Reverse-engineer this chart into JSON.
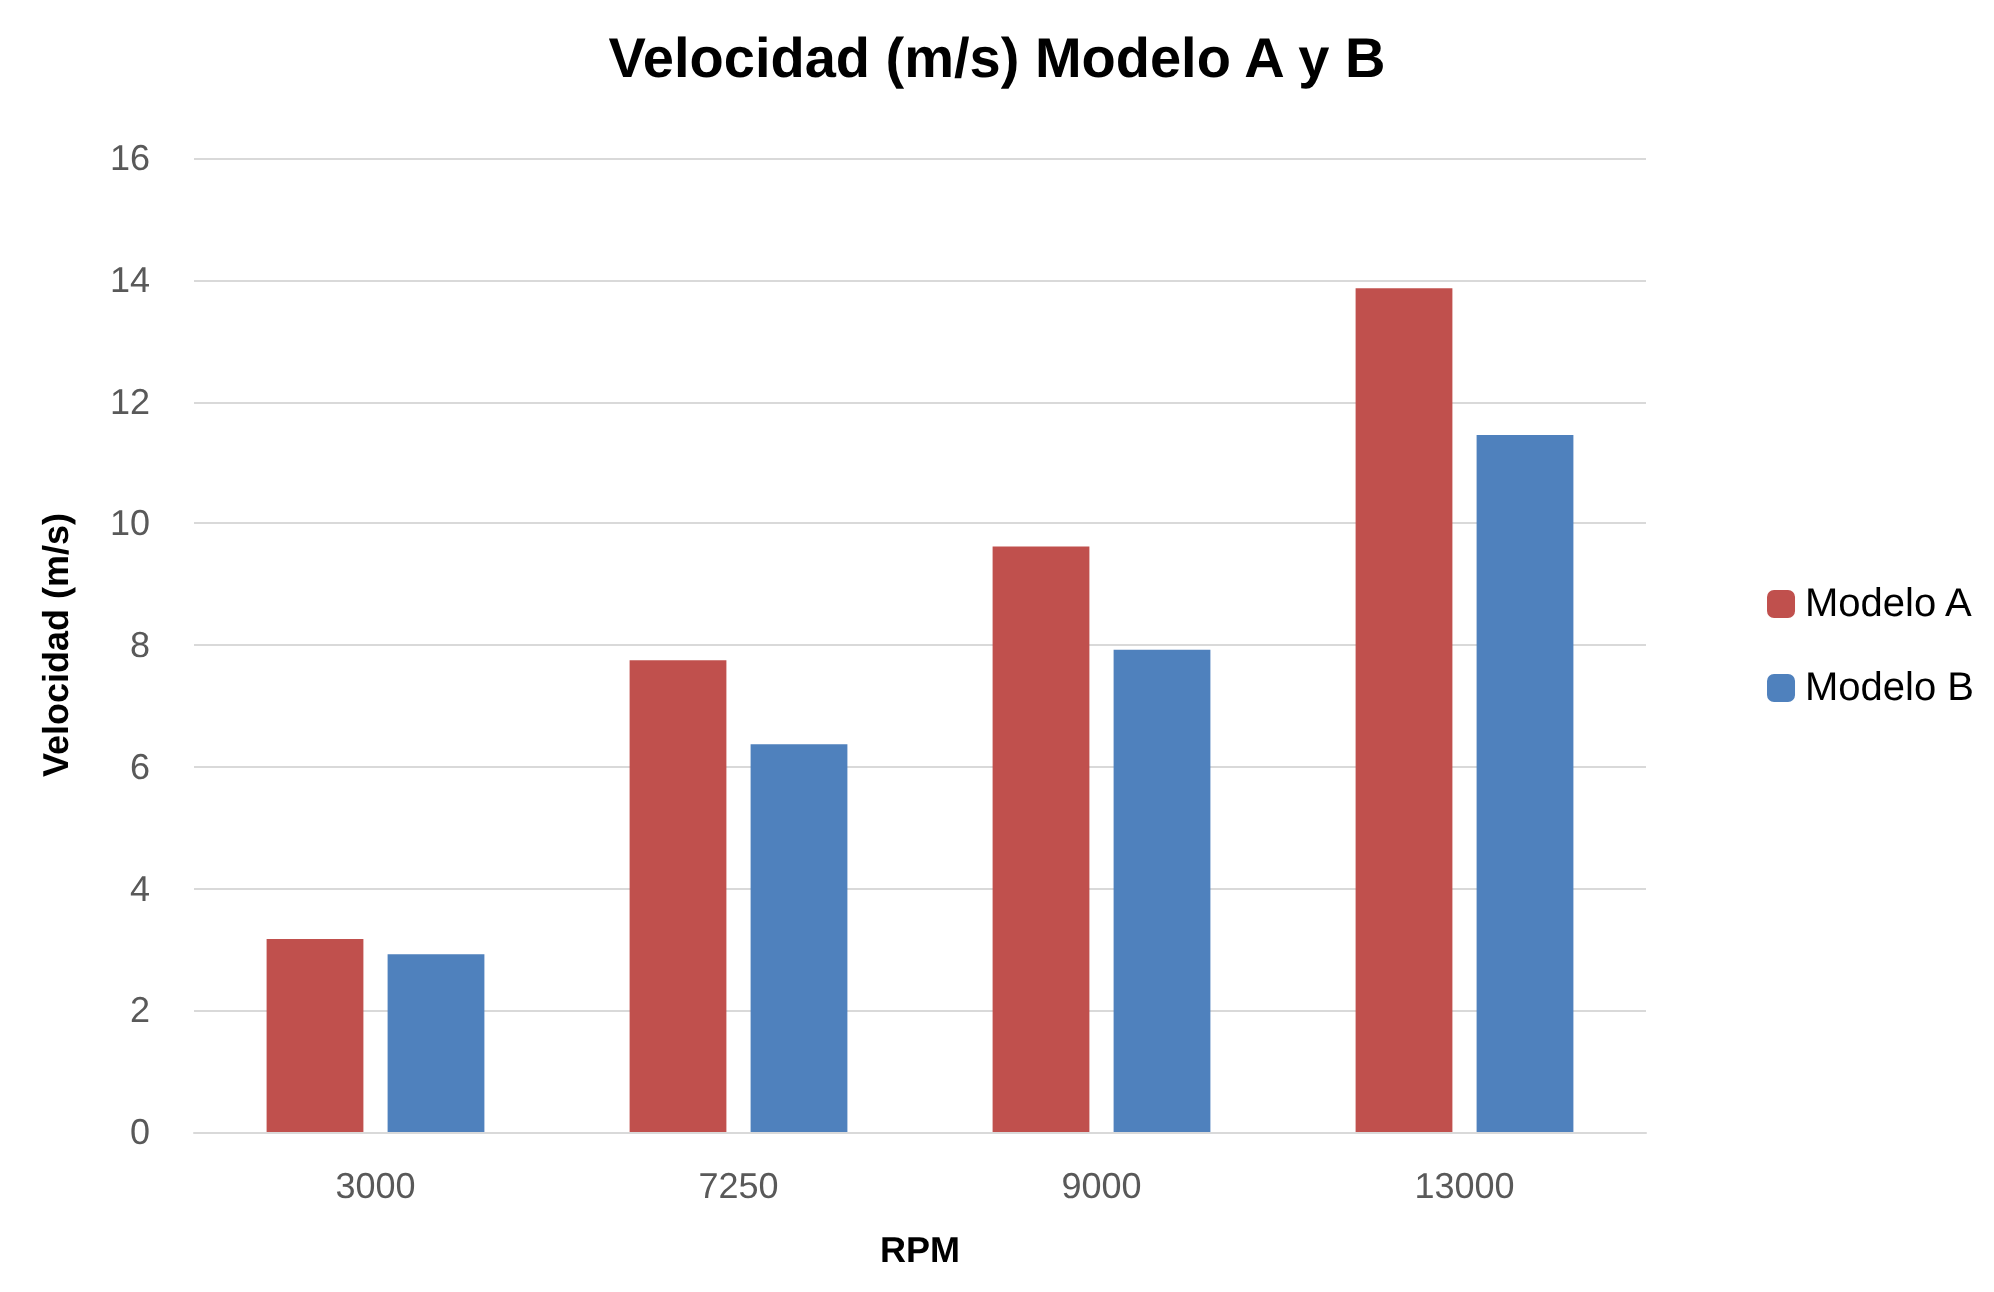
{
  "chart_data": {
    "type": "bar",
    "title": "Velocidad (m/s) Modelo A y B",
    "xlabel": "RPM",
    "ylabel": "Velocidad (m/s)",
    "categories": [
      "3000",
      "7250",
      "9000",
      "13000"
    ],
    "series": [
      {
        "name": "Modelo A",
        "color": "#c0504d",
        "values": [
          3.17,
          7.75,
          9.62,
          13.86
        ]
      },
      {
        "name": "Modelo B",
        "color": "#4f81bd",
        "values": [
          2.92,
          6.37,
          7.92,
          11.45
        ]
      }
    ],
    "ylim": [
      0,
      16
    ],
    "yticks": [
      0,
      2,
      4,
      6,
      8,
      10,
      12,
      14,
      16
    ],
    "grid": "y",
    "legend": "right"
  }
}
